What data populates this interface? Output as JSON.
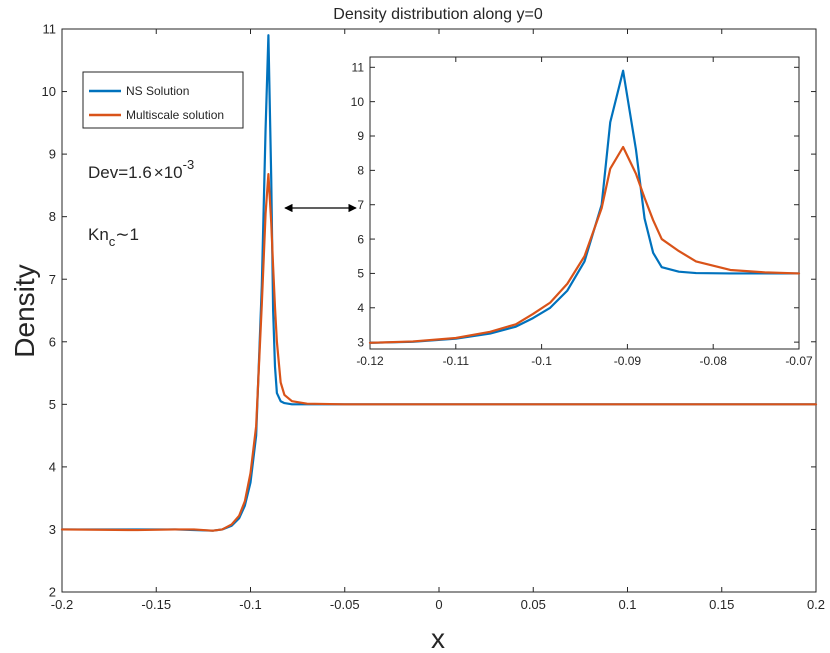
{
  "chart_data": [
    {
      "type": "line",
      "title": "Density distribution along y=0",
      "xlabel": "x",
      "ylabel": "Density",
      "xlim": [
        -0.2,
        0.2
      ],
      "ylim": [
        2,
        11
      ],
      "xticks": [
        -0.2,
        -0.15,
        -0.1,
        -0.05,
        0,
        0.05,
        0.1,
        0.15,
        0.2
      ],
      "xtick_labels": [
        "-0.2",
        "-0.15",
        "-0.1",
        "-0.05",
        "0",
        "0.05",
        "0.1",
        "0.15",
        "0.2"
      ],
      "yticks": [
        2,
        3,
        4,
        5,
        6,
        7,
        8,
        9,
        10,
        11
      ],
      "ytick_labels": [
        "2",
        "3",
        "4",
        "5",
        "6",
        "7",
        "8",
        "9",
        "10",
        "11"
      ],
      "grid": false,
      "legend_position": "top-left",
      "series": [
        {
          "name": "NS Solution",
          "color": "#0072BD",
          "x": [
            -0.2,
            -0.16,
            -0.14,
            -0.13,
            -0.12,
            -0.115,
            -0.11,
            -0.106,
            -0.103,
            -0.1,
            -0.097,
            -0.094,
            -0.092,
            -0.0905,
            -0.089,
            -0.088,
            -0.087,
            -0.086,
            -0.084,
            -0.082,
            -0.078,
            -0.07,
            -0.05,
            0,
            0.1,
            0.2
          ],
          "y": [
            3.0,
            3.0,
            3.0,
            2.99,
            2.98,
            3.0,
            3.06,
            3.18,
            3.38,
            3.75,
            4.5,
            6.9,
            9.4,
            10.9,
            8.6,
            6.5,
            5.6,
            5.18,
            5.05,
            5.02,
            5.0,
            5.0,
            5.0,
            5.0,
            5.0,
            5.0
          ]
        },
        {
          "name": "Multiscale solution",
          "color": "#D95319",
          "x": [
            -0.2,
            -0.16,
            -0.14,
            -0.13,
            -0.12,
            -0.115,
            -0.11,
            -0.106,
            -0.103,
            -0.1,
            -0.097,
            -0.094,
            -0.092,
            -0.0905,
            -0.089,
            -0.088,
            -0.087,
            -0.086,
            -0.084,
            -0.082,
            -0.078,
            -0.07,
            -0.05,
            0,
            0.1,
            0.2
          ],
          "y": [
            3.0,
            2.99,
            3.0,
            3.0,
            2.98,
            3.0,
            3.08,
            3.22,
            3.45,
            3.9,
            4.65,
            6.6,
            8.05,
            8.68,
            7.9,
            7.2,
            6.55,
            6.0,
            5.35,
            5.15,
            5.05,
            5.01,
            5.0,
            5.0,
            5.0,
            5.0
          ]
        }
      ],
      "annotations": [
        {
          "text_main": "Dev=1.6",
          "text_times": "×10",
          "text_exp": "-3"
        },
        {
          "text_main": "Kn",
          "text_sub": "c",
          "text_tilde": "∼1"
        }
      ]
    },
    {
      "type": "line",
      "title": "",
      "xlim": [
        -0.12,
        -0.07
      ],
      "ylim": [
        2.8,
        11.3
      ],
      "xticks": [
        -0.12,
        -0.11,
        -0.1,
        -0.09,
        -0.08,
        -0.07
      ],
      "xtick_labels": [
        "-0.12",
        "-0.11",
        "-0.1",
        "-0.09",
        "-0.08",
        "-0.07"
      ],
      "yticks": [
        3,
        4,
        5,
        6,
        7,
        8,
        9,
        10,
        11
      ],
      "ytick_labels": [
        "3",
        "4",
        "5",
        "6",
        "7",
        "8",
        "9",
        "10",
        "11"
      ],
      "series": [
        {
          "name": "NS Solution",
          "color": "#0072BD",
          "x": [
            -0.12,
            -0.115,
            -0.11,
            -0.106,
            -0.103,
            -0.101,
            -0.099,
            -0.097,
            -0.095,
            -0.093,
            -0.092,
            -0.0905,
            -0.089,
            -0.088,
            -0.087,
            -0.086,
            -0.084,
            -0.082,
            -0.078,
            -0.074,
            -0.07
          ],
          "y": [
            2.98,
            3.01,
            3.1,
            3.25,
            3.45,
            3.7,
            4.0,
            4.5,
            5.35,
            7.0,
            9.4,
            10.9,
            8.6,
            6.6,
            5.6,
            5.18,
            5.05,
            5.01,
            5.0,
            5.0,
            5.0
          ]
        },
        {
          "name": "Multiscale solution",
          "color": "#D95319",
          "x": [
            -0.12,
            -0.115,
            -0.11,
            -0.106,
            -0.103,
            -0.101,
            -0.099,
            -0.097,
            -0.095,
            -0.093,
            -0.092,
            -0.0905,
            -0.089,
            -0.088,
            -0.087,
            -0.086,
            -0.084,
            -0.082,
            -0.078,
            -0.074,
            -0.07
          ],
          "y": [
            2.98,
            3.02,
            3.12,
            3.3,
            3.52,
            3.82,
            4.15,
            4.7,
            5.5,
            6.9,
            8.05,
            8.68,
            7.9,
            7.2,
            6.55,
            6.0,
            5.65,
            5.35,
            5.1,
            5.03,
            5.0
          ]
        }
      ]
    }
  ]
}
